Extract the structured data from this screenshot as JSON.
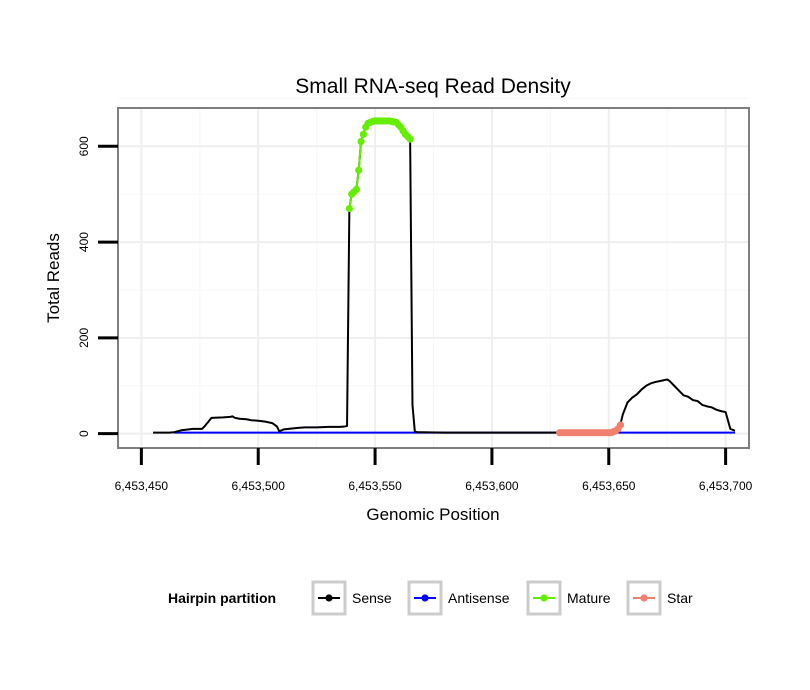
{
  "chart_data": {
    "type": "line",
    "title": "Small RNA-seq Read Density",
    "xlabel": "Genomic Position",
    "ylabel": "Total Reads",
    "xlim": [
      6453440,
      6453710
    ],
    "ylim": [
      -30,
      680
    ],
    "x_ticks": [
      6453450,
      6453500,
      6453550,
      6453600,
      6453650,
      6453700
    ],
    "x_tick_labels": [
      "6,453,450",
      "6,453,500",
      "6,453,550",
      "6,453,600",
      "6,453,650",
      "6,453,700"
    ],
    "y_ticks": [
      0,
      200,
      400,
      600
    ],
    "y_tick_labels": [
      "0",
      "200",
      "400",
      "600"
    ],
    "grid": true,
    "legend": {
      "title": "Hairpin partition",
      "position": "bottom",
      "entries": [
        {
          "name": "Sense",
          "color": "#000000"
        },
        {
          "name": "Antisense",
          "color": "#0000ff"
        },
        {
          "name": "Mature",
          "color": "#66ee00"
        },
        {
          "name": "Star",
          "color": "#f08070"
        }
      ]
    },
    "series": [
      {
        "name": "Sense",
        "color": "#000000",
        "x": [
          6453455,
          6453462,
          6453464,
          6453467,
          6453469,
          6453472,
          6453476,
          6453477,
          6453480,
          6453485,
          6453488,
          6453489,
          6453490,
          6453492,
          6453495,
          6453497,
          6453500,
          6453503,
          6453504,
          6453506,
          6453508,
          6453509,
          6453510,
          6453511,
          6453513,
          6453515,
          6453517,
          6453520,
          6453525,
          6453530,
          6453535,
          6453537,
          6453538,
          6453539,
          6453540,
          6453541,
          6453542,
          6453543,
          6453544,
          6453545,
          6453546,
          6453547,
          6453548,
          6453549,
          6453550,
          6453552,
          6453554,
          6453556,
          6453558,
          6453560,
          6453561,
          6453562,
          6453563,
          6453564,
          6453565,
          6453566,
          6453567,
          6453568,
          6453570,
          6453580,
          6453600,
          6453620,
          6453630,
          6453640,
          6453650,
          6453654,
          6453655,
          6453656,
          6453658,
          6453660,
          6453662,
          6453664,
          6453666,
          6453668,
          6453670,
          6453672,
          6453674,
          6453675,
          6453676,
          6453678,
          6453680,
          6453682,
          6453684,
          6453686,
          6453688,
          6453690,
          6453692,
          6453694,
          6453696,
          6453698,
          6453700,
          6453702,
          6453704
        ],
        "y": [
          2,
          2,
          3,
          7,
          8,
          10,
          10,
          15,
          33,
          34,
          35,
          36,
          33,
          31,
          30,
          28,
          27,
          25,
          24,
          22,
          15,
          5,
          7,
          9,
          10,
          11,
          12,
          13,
          13,
          14,
          14,
          15,
          16,
          470,
          500,
          505,
          510,
          550,
          610,
          625,
          640,
          648,
          650,
          652,
          653,
          653,
          653,
          652,
          650,
          645,
          640,
          632,
          625,
          620,
          615,
          60,
          5,
          3,
          3,
          2,
          2,
          2,
          2,
          2,
          2,
          5,
          20,
          40,
          65,
          75,
          82,
          92,
          100,
          105,
          108,
          110,
          112,
          113,
          110,
          100,
          90,
          80,
          77,
          70,
          68,
          60,
          57,
          55,
          50,
          47,
          45,
          10,
          6
        ]
      },
      {
        "name": "Antisense",
        "color": "#0000ff",
        "x": [
          6453464,
          6453704
        ],
        "y": [
          2,
          2
        ]
      },
      {
        "name": "Mature",
        "color": "#66ee00",
        "x": [
          6453539,
          6453540,
          6453541,
          6453542,
          6453543,
          6453544,
          6453545,
          6453546,
          6453547,
          6453548,
          6453549,
          6453550,
          6453551,
          6453552,
          6453553,
          6453554,
          6453555,
          6453556,
          6453557,
          6453558,
          6453559,
          6453560,
          6453561,
          6453562,
          6453563,
          6453564,
          6453565
        ],
        "y": [
          470,
          500,
          505,
          510,
          550,
          610,
          625,
          640,
          648,
          650,
          652,
          653,
          653,
          653,
          653,
          653,
          653,
          653,
          652,
          651,
          650,
          645,
          640,
          632,
          625,
          620,
          615
        ]
      },
      {
        "name": "Star",
        "color": "#f08070",
        "x": [
          6453629,
          6453630,
          6453631,
          6453632,
          6453633,
          6453634,
          6453635,
          6453636,
          6453637,
          6453638,
          6453639,
          6453640,
          6453641,
          6453642,
          6453643,
          6453644,
          6453645,
          6453646,
          6453647,
          6453648,
          6453649,
          6453650,
          6453651,
          6453652,
          6453653,
          6453654,
          6453655
        ],
        "y": [
          2,
          2,
          2,
          2,
          2,
          2,
          2,
          2,
          2,
          2,
          2,
          2,
          2,
          2,
          2,
          2,
          2,
          2,
          2,
          2,
          2,
          2,
          2,
          4,
          6,
          10,
          18
        ]
      }
    ]
  }
}
